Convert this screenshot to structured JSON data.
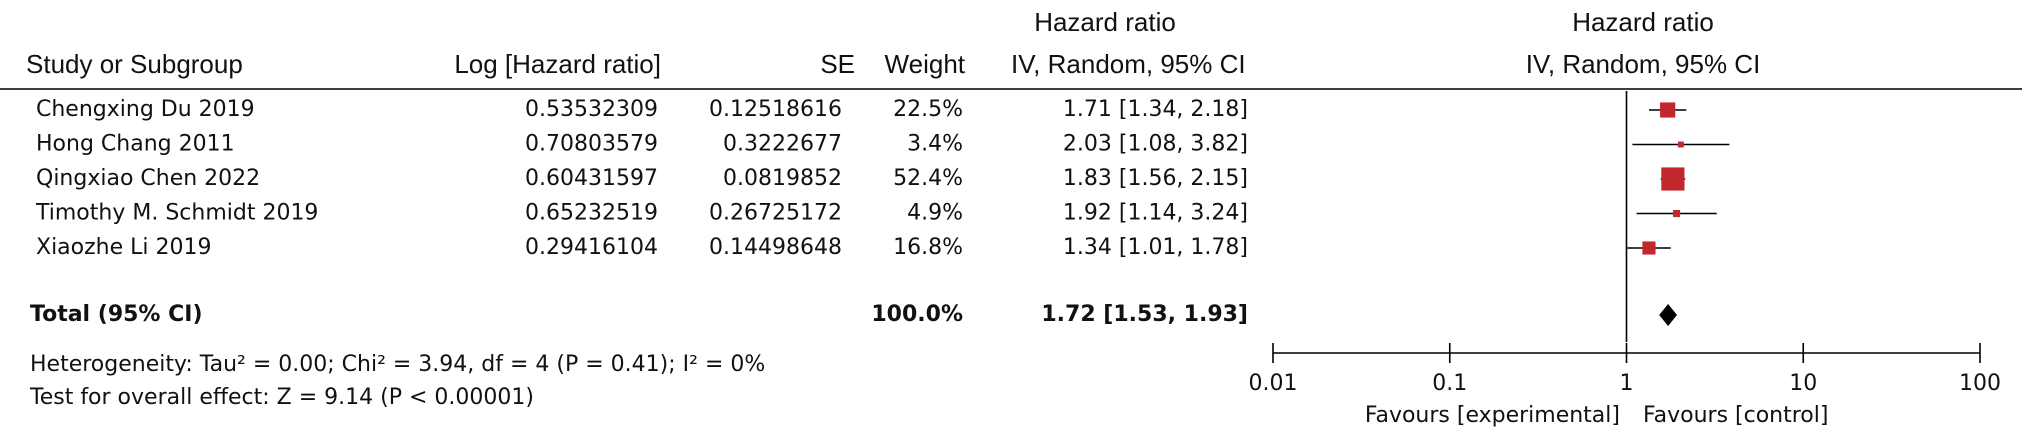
{
  "chart_data": {
    "type": "forest",
    "headers": {
      "study": "Study or Subgroup",
      "log_hr": "Log [Hazard ratio]",
      "se": "SE",
      "weight": "Weight",
      "effect_title": "Hazard ratio",
      "effect_method": "IV, Random, 95% CI",
      "plot_title": "Hazard ratio",
      "plot_method": "IV, Random, 95% CI"
    },
    "studies": [
      {
        "name": "Chengxing Du 2019",
        "log_hr": 0.53532309,
        "se": 0.12518616,
        "weight": 22.5,
        "weight_label": "22.5%",
        "hr": 1.71,
        "ci": [
          1.34,
          2.18
        ],
        "ci_label": "1.71 [1.34, 2.18]"
      },
      {
        "name": "Hong Chang 2011",
        "log_hr": 0.70803579,
        "se": 0.3222677,
        "weight": 3.4,
        "weight_label": "3.4%",
        "hr": 2.03,
        "ci": [
          1.08,
          3.82
        ],
        "ci_label": "2.03 [1.08, 3.82]"
      },
      {
        "name": "Qingxiao Chen 2022",
        "log_hr": 0.60431597,
        "se": 0.0819852,
        "weight": 52.4,
        "weight_label": "52.4%",
        "hr": 1.83,
        "ci": [
          1.56,
          2.15
        ],
        "ci_label": "1.83 [1.56, 2.15]"
      },
      {
        "name": "Timothy M. Schmidt 2019",
        "log_hr": 0.65232519,
        "se": 0.26725172,
        "weight": 4.9,
        "weight_label": "4.9%",
        "hr": 1.92,
        "ci": [
          1.14,
          3.24
        ],
        "ci_label": "1.92 [1.14, 3.24]"
      },
      {
        "name": "Xiaozhe Li 2019",
        "log_hr": 0.29416104,
        "se": 0.14498648,
        "weight": 16.8,
        "weight_label": "16.8%",
        "hr": 1.34,
        "ci": [
          1.01,
          1.78
        ],
        "ci_label": "1.34 [1.01, 1.78]"
      }
    ],
    "total": {
      "name": "Total (95% CI)",
      "weight": 100,
      "weight_label": "100.0%",
      "hr": 1.72,
      "ci": [
        1.53,
        1.93
      ],
      "ci_label": "1.72 [1.53, 1.93]"
    },
    "heterogeneity": "Heterogeneity: Tau² = 0.00; Chi² = 3.94, df = 4 (P = 0.41); I² = 0%",
    "overall_effect": "Test for overall effect: Z = 9.14 (P < 0.00001)",
    "xscale": "log",
    "xlim": [
      0.01,
      100
    ],
    "xticks": [
      0.01,
      0.1,
      1,
      10,
      100
    ],
    "reference": 1,
    "xlabel_left": "Favours [experimental]",
    "xlabel_right": "Favours [control]",
    "marker_color": "#c0282e"
  }
}
